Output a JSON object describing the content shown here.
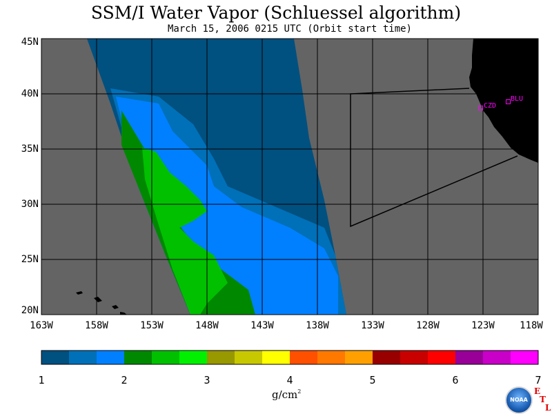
{
  "header": {
    "title": "SSM/I Water Vapor (Schluessel algorithm)",
    "subtitle": "March 15, 2006  0215 UTC  (Orbit start time)"
  },
  "map": {
    "lat_labels": [
      "45N",
      "40N",
      "35N",
      "30N",
      "25N",
      "20N"
    ],
    "lon_labels": [
      "163W",
      "158W",
      "153W",
      "148W",
      "143W",
      "138W",
      "133W",
      "128W",
      "123W",
      "118W"
    ],
    "lon_range": [
      -163,
      -118
    ],
    "lat_range": [
      20,
      45
    ],
    "colors": {
      "background": "#646464",
      "land": "#000000",
      "grid": "#000000",
      "level_1": "#005080",
      "level_1_5": "#0070b8",
      "level_2": "#0080ff",
      "level_2_5": "#008800",
      "level_3": "#00c000"
    },
    "sites": [
      {
        "id": "CZD",
        "label": "CZD"
      },
      {
        "id": "BLU",
        "label": "BLU"
      }
    ]
  },
  "colorbar": {
    "tick_labels": [
      "1",
      "2",
      "3",
      "4",
      "5",
      "6",
      "7"
    ],
    "units": "g/cm",
    "units_sup": "2",
    "colors": [
      "#005080",
      "#0070b8",
      "#0080ff",
      "#008800",
      "#00c000",
      "#00f000",
      "#989800",
      "#c8c800",
      "#ffff00",
      "#ff5000",
      "#ff7800",
      "#ffa000",
      "#980000",
      "#c80000",
      "#ff0000",
      "#980098",
      "#c800c8",
      "#ff00ff"
    ]
  },
  "logo": {
    "text": "NOAA",
    "etl": [
      "E",
      "T",
      "L"
    ]
  }
}
